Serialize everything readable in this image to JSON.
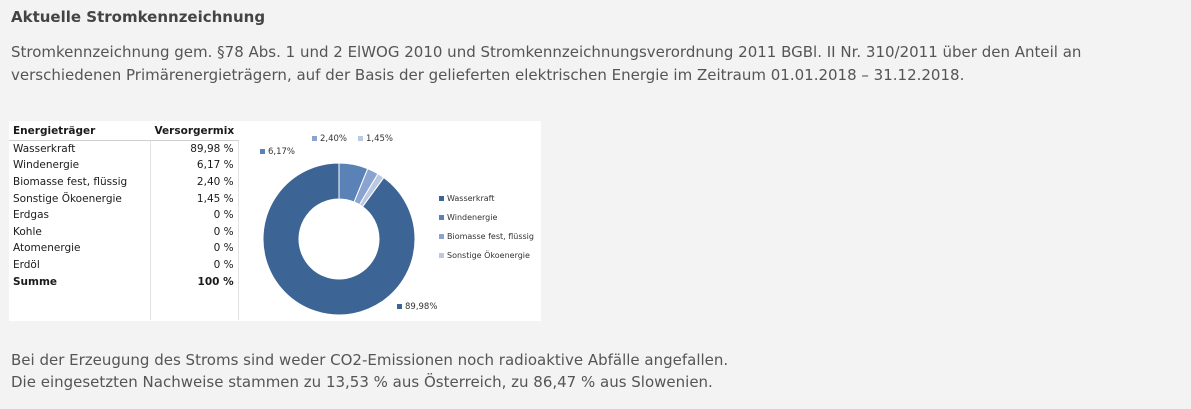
{
  "title": "Aktuelle Stromkennzeichnung",
  "intro": "Stromkennzeichnung gem. §78 Abs. 1 und 2 ElWOG 2010 und Stromkennzeichnungsverordnung 2011 BGBl. II Nr. 310/2011 über den Anteil an verschiedenen Primärenergieträgern, auf der Basis der gelieferten elektrischen Energie im Zeitraum 01.01.2018 – 31.12.2018.",
  "table": {
    "headers": [
      "Energieträger",
      "Versorgermix"
    ],
    "rows": [
      {
        "label": "Wasserkraft",
        "value": "89,98 %"
      },
      {
        "label": "Windenergie",
        "value": "6,17 %"
      },
      {
        "label": "Biomasse fest, flüssig",
        "value": "2,40 %"
      },
      {
        "label": "Sonstige Ökoenergie",
        "value": "1,45 %"
      },
      {
        "label": "Erdgas",
        "value": "0 %"
      },
      {
        "label": "Kohle",
        "value": "0 %"
      },
      {
        "label": "Atomenergie",
        "value": "0 %"
      },
      {
        "label": "Erdöl",
        "value": "0 %"
      }
    ],
    "total": {
      "label": "Summe",
      "value": "100 %"
    }
  },
  "chart_data": {
    "type": "pie",
    "donut": true,
    "categories": [
      "Wasserkraft",
      "Windenergie",
      "Biomasse fest, flüssig",
      "Sonstige Ökoenergie"
    ],
    "values": [
      89.98,
      6.17,
      2.4,
      1.45
    ],
    "data_labels": [
      "89,98%",
      "6,17%",
      "2,40%",
      "1,45%"
    ],
    "colors": [
      "#3c6494",
      "#5a82b7",
      "#8aa4cf",
      "#b9c9e3"
    ],
    "legend_position": "right"
  },
  "footer": {
    "line1": "Bei der Erzeugung des Stroms sind weder CO2-Emissionen noch radioaktive Abfälle angefallen.",
    "line2": "Die eingesetzten Nachweise stammen zu 13,53 % aus Österreich, zu 86,47 % aus Slowenien."
  }
}
